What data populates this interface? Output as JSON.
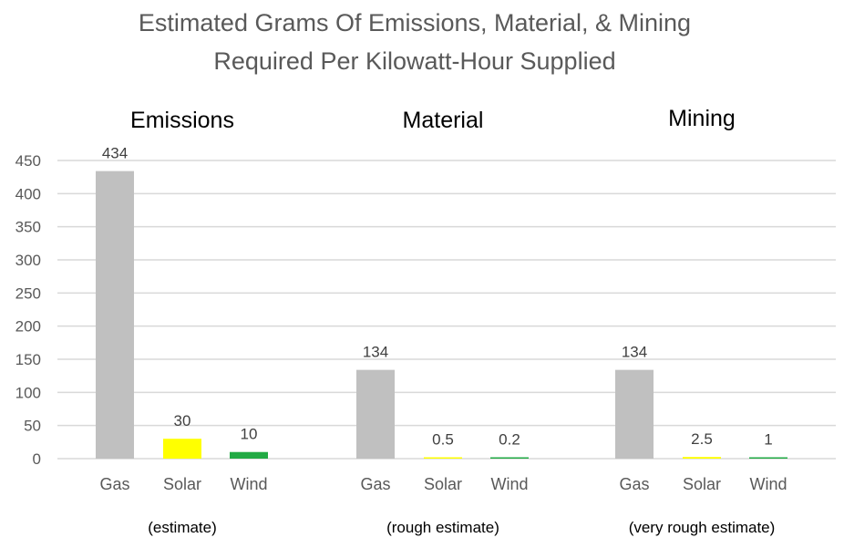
{
  "chart_data": {
    "type": "bar",
    "title_lines": [
      "Estimated Grams Of Emissions, Material, & Mining",
      "Required Per Kilowatt-Hour Supplied"
    ],
    "ylim": [
      0,
      450
    ],
    "yticks": [
      0,
      50,
      100,
      150,
      200,
      250,
      300,
      350,
      400,
      450
    ],
    "grid": true,
    "colors": {
      "Gas": "#c0c0c0",
      "Solar": "#ffff00",
      "Wind": "#22aa44"
    },
    "groups": [
      {
        "name": "Emissions",
        "note": "(estimate)",
        "categories": [
          "Gas",
          "Solar",
          "Wind"
        ],
        "values": [
          434,
          30,
          10
        ],
        "labels": [
          "434",
          "30",
          "10"
        ]
      },
      {
        "name": "Material",
        "note": "(rough estimate)",
        "categories": [
          "Gas",
          "Solar",
          "Wind"
        ],
        "values": [
          134,
          0.5,
          0.2
        ],
        "labels": [
          "134",
          "0.5",
          "0.2"
        ]
      },
      {
        "name": "Mining",
        "note": "(very rough estimate)",
        "categories": [
          "Gas",
          "Solar",
          "Wind"
        ],
        "values": [
          134,
          2.5,
          1
        ],
        "labels": [
          "134",
          "2.5",
          "1"
        ]
      }
    ]
  }
}
